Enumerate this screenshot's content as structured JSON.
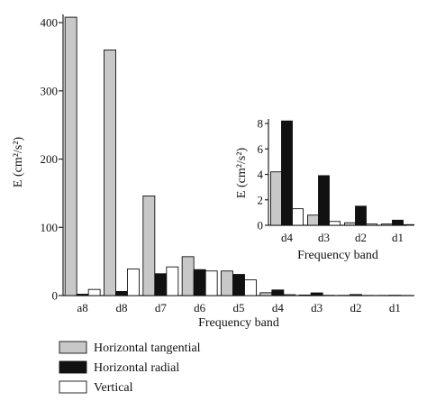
{
  "chart_data": [
    {
      "type": "bar",
      "categories": [
        "a8",
        "d8",
        "d7",
        "d6",
        "d5",
        "d4",
        "d3",
        "d2",
        "d1"
      ],
      "series": [
        {
          "name": "Horizontal tangential",
          "values": [
            408,
            360,
            146,
            57,
            36,
            4.2,
            0.8,
            0.2,
            0.1
          ]
        },
        {
          "name": "Horizontal radial",
          "values": [
            2,
            6,
            32,
            38,
            31,
            8.2,
            3.9,
            1.5,
            0.4
          ]
        },
        {
          "name": "Vertical",
          "values": [
            9,
            39,
            42,
            36,
            23,
            1.3,
            0.3,
            0.1,
            0.05
          ]
        }
      ],
      "ylim": [
        0,
        420
      ],
      "yticks": [
        "0",
        "100",
        "200",
        "300",
        "400"
      ],
      "ylabel": "E (cm²/s²)",
      "xlabel": "Frequency band",
      "legend_position": "bottom-left"
    },
    {
      "type": "bar",
      "categories": [
        "d4",
        "d3",
        "d2",
        "d1"
      ],
      "series": [
        {
          "name": "Horizontal tangential",
          "values": [
            4.2,
            0.8,
            0.2,
            0.1
          ]
        },
        {
          "name": "Horizontal radial",
          "values": [
            8.2,
            3.9,
            1.5,
            0.4
          ]
        },
        {
          "name": "Vertical",
          "values": [
            1.3,
            0.3,
            0.1,
            0.05
          ]
        }
      ],
      "ylim": [
        0,
        8.5
      ],
      "yticks": [
        "0",
        "2",
        "4",
        "6",
        "8"
      ],
      "ylabel": "E (cm²/s²)",
      "xlabel": "Frequency band"
    }
  ],
  "colors": {
    "Horizontal tangential": "#c8c8c8",
    "Horizontal radial": "#111111",
    "Vertical": "#ffffff"
  },
  "legend": {
    "items": [
      "Horizontal tangential",
      "Horizontal radial",
      "Vertical"
    ]
  }
}
